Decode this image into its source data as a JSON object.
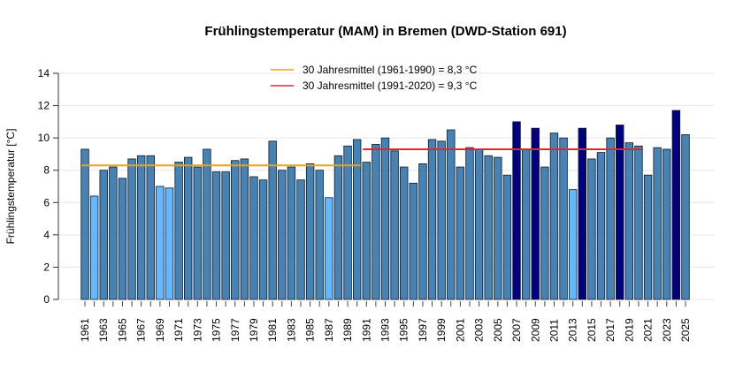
{
  "chart_data": {
    "type": "bar",
    "title": "Frühlingstemperatur (MAM) in Bremen (DWD-Station 691)",
    "xlabel": "",
    "ylabel": "Frühlingstemperatur [°C]",
    "ylim": [
      0,
      14
    ],
    "yticks": [
      0,
      2,
      4,
      6,
      8,
      10,
      12,
      14
    ],
    "grid": true,
    "legend_position": "top-center",
    "categories": [
      1961,
      1962,
      1963,
      1964,
      1965,
      1966,
      1967,
      1968,
      1969,
      1970,
      1971,
      1972,
      1973,
      1974,
      1975,
      1976,
      1977,
      1978,
      1979,
      1980,
      1981,
      1982,
      1983,
      1984,
      1985,
      1986,
      1987,
      1988,
      1989,
      1990,
      1991,
      1992,
      1993,
      1994,
      1995,
      1996,
      1997,
      1998,
      1999,
      2000,
      2001,
      2002,
      2003,
      2004,
      2005,
      2006,
      2007,
      2008,
      2009,
      2010,
      2011,
      2012,
      2013,
      2014,
      2015,
      2016,
      2017,
      2018,
      2019,
      2020,
      2021,
      2022,
      2023,
      2024,
      2025
    ],
    "values": [
      9.3,
      6.4,
      8.0,
      8.2,
      7.5,
      8.7,
      8.9,
      8.9,
      7.0,
      6.9,
      8.5,
      8.8,
      8.2,
      9.3,
      7.9,
      7.9,
      8.6,
      8.7,
      7.6,
      7.4,
      9.8,
      8.0,
      8.2,
      7.4,
      8.4,
      8.0,
      6.3,
      8.9,
      9.5,
      9.9,
      8.5,
      9.6,
      10.0,
      9.2,
      8.2,
      7.2,
      8.4,
      9.9,
      9.8,
      10.5,
      8.2,
      9.4,
      9.3,
      8.9,
      8.8,
      7.7,
      11.0,
      9.3,
      10.6,
      8.2,
      10.3,
      10.0,
      6.8,
      10.6,
      8.7,
      9.1,
      10.0,
      10.8,
      9.7,
      9.5,
      7.7,
      9.4,
      9.3,
      11.7,
      10.2
    ],
    "cold_years": [
      1962,
      1969,
      1970,
      1987,
      2013
    ],
    "warm_years": [
      2007,
      2009,
      2014,
      2018,
      2024
    ],
    "colors": {
      "normal": "#4682b4",
      "cold": "#63b8ff",
      "warm": "#000080"
    },
    "reference_lines": [
      {
        "label": "30 Jahresmittel (1961-1990) = 8,3 °C",
        "value": 8.3,
        "from": 1961,
        "to": 1990,
        "color": "#e8a317"
      },
      {
        "label": "30 Jahresmittel (1991-2020) = 9,3 °C",
        "value": 9.3,
        "from": 1991,
        "to": 2020,
        "color": "#e0282c"
      }
    ]
  }
}
